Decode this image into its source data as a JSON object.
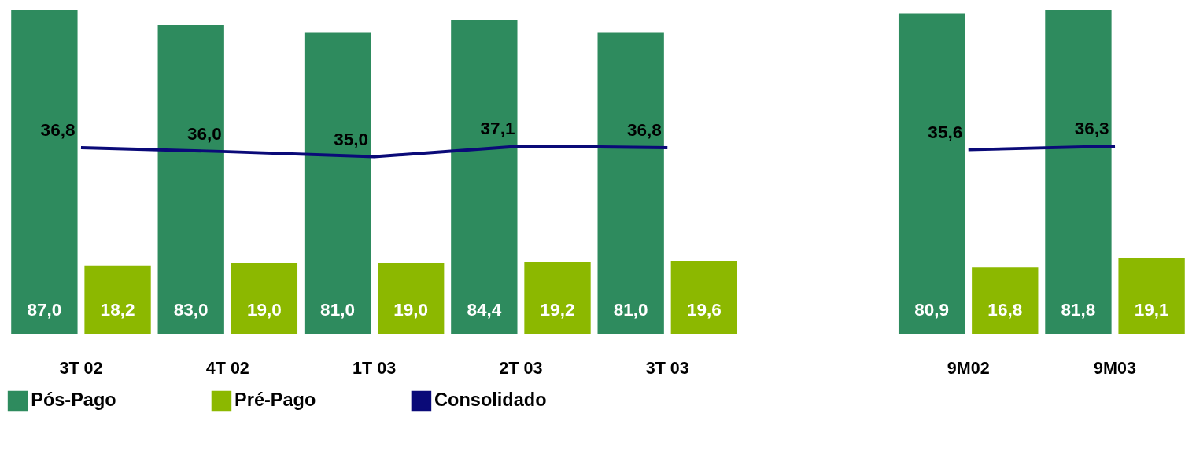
{
  "chart_data": [
    {
      "type": "bar",
      "categories": [
        "3T 02",
        "4T 02",
        "1T 03",
        "2T 03",
        "3T 03"
      ],
      "legend": "bottom",
      "series": [
        {
          "name": "Pós-Pago",
          "color": "#2e8b5e",
          "values": [
            87.0,
            83.0,
            81.0,
            84.4,
            81.0
          ],
          "value_labels": [
            "87,0",
            "83,0",
            "81,0",
            "84,4",
            "81,0"
          ]
        },
        {
          "name": "Pré-Pago",
          "color": "#8cb800",
          "values": [
            18.2,
            19.0,
            19.0,
            19.2,
            19.6
          ],
          "value_labels": [
            "18,2",
            "19,0",
            "19,0",
            "19,2",
            "19,6"
          ]
        },
        {
          "name": "Consolidado",
          "type": "line",
          "axis": "y2",
          "color": "#0a0a78",
          "values": [
            36.8,
            36.0,
            35.0,
            37.1,
            36.8
          ],
          "value_labels": [
            "36,8",
            "36,0",
            "35,0",
            "37,1",
            "36,8"
          ]
        }
      ]
    },
    {
      "type": "bar",
      "categories": [
        "9M02",
        "9M03"
      ],
      "legend": false,
      "series": [
        {
          "color": "#2e8b5e",
          "values": [
            80.9,
            81.8
          ],
          "value_labels": [
            "80,9",
            "81,8"
          ]
        },
        {
          "color": "#8cb800",
          "values": [
            16.8,
            19.1
          ],
          "value_labels": [
            "16,8",
            "19,1"
          ]
        },
        {
          "type": "line",
          "axis": "y2",
          "color": "#0a0a78",
          "values": [
            35.6,
            36.3
          ],
          "value_labels": [
            "35,6",
            "36,3"
          ]
        }
      ]
    }
  ]
}
